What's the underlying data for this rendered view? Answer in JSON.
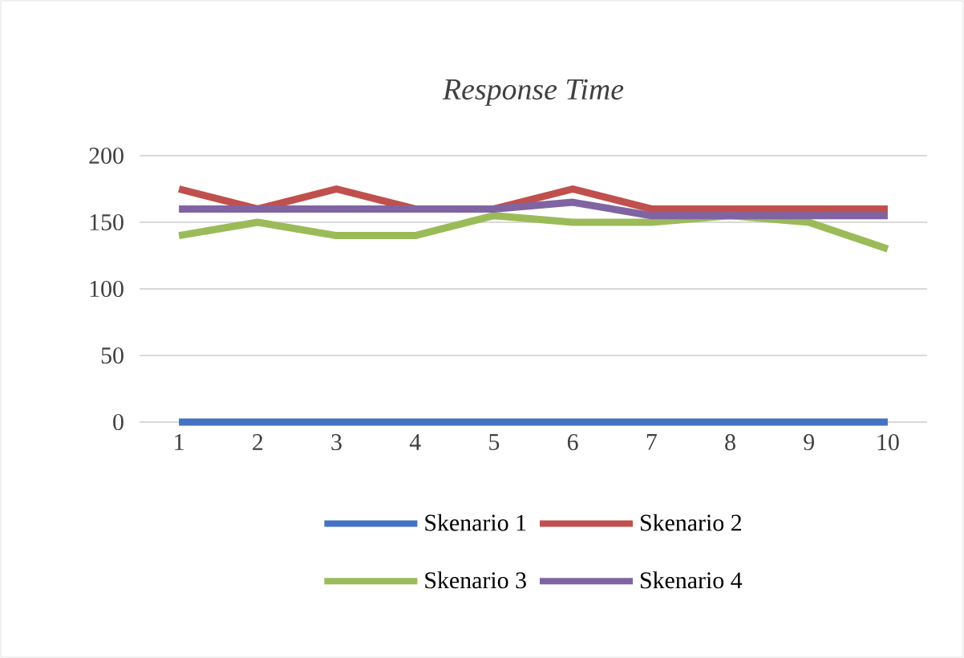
{
  "chart_data": {
    "type": "line",
    "title": "Response Time",
    "categories": [
      "1",
      "2",
      "3",
      "4",
      "5",
      "6",
      "7",
      "8",
      "9",
      "10"
    ],
    "ylim": [
      0,
      200
    ],
    "yticks": [
      0,
      50,
      100,
      150,
      200
    ],
    "grid": "y",
    "legend": "bottom",
    "line_style": "solid",
    "marker": "none",
    "series": [
      {
        "name": "Skenario 1",
        "color": "#4472c4",
        "values": [
          0,
          0,
          0,
          0,
          0,
          0,
          0,
          0,
          0,
          0
        ]
      },
      {
        "name": "Skenario 2",
        "color": "#c0504d",
        "values": [
          175,
          160,
          175,
          160,
          160,
          175,
          160,
          160,
          160,
          160
        ]
      },
      {
        "name": "Skenario 3",
        "color": "#9bbb59",
        "values": [
          140,
          150,
          140,
          140,
          155,
          150,
          150,
          155,
          150,
          130
        ]
      },
      {
        "name": "Skenario 4",
        "color": "#8064a2",
        "values": [
          160,
          160,
          160,
          160,
          160,
          165,
          155,
          155,
          155,
          155
        ]
      }
    ]
  }
}
